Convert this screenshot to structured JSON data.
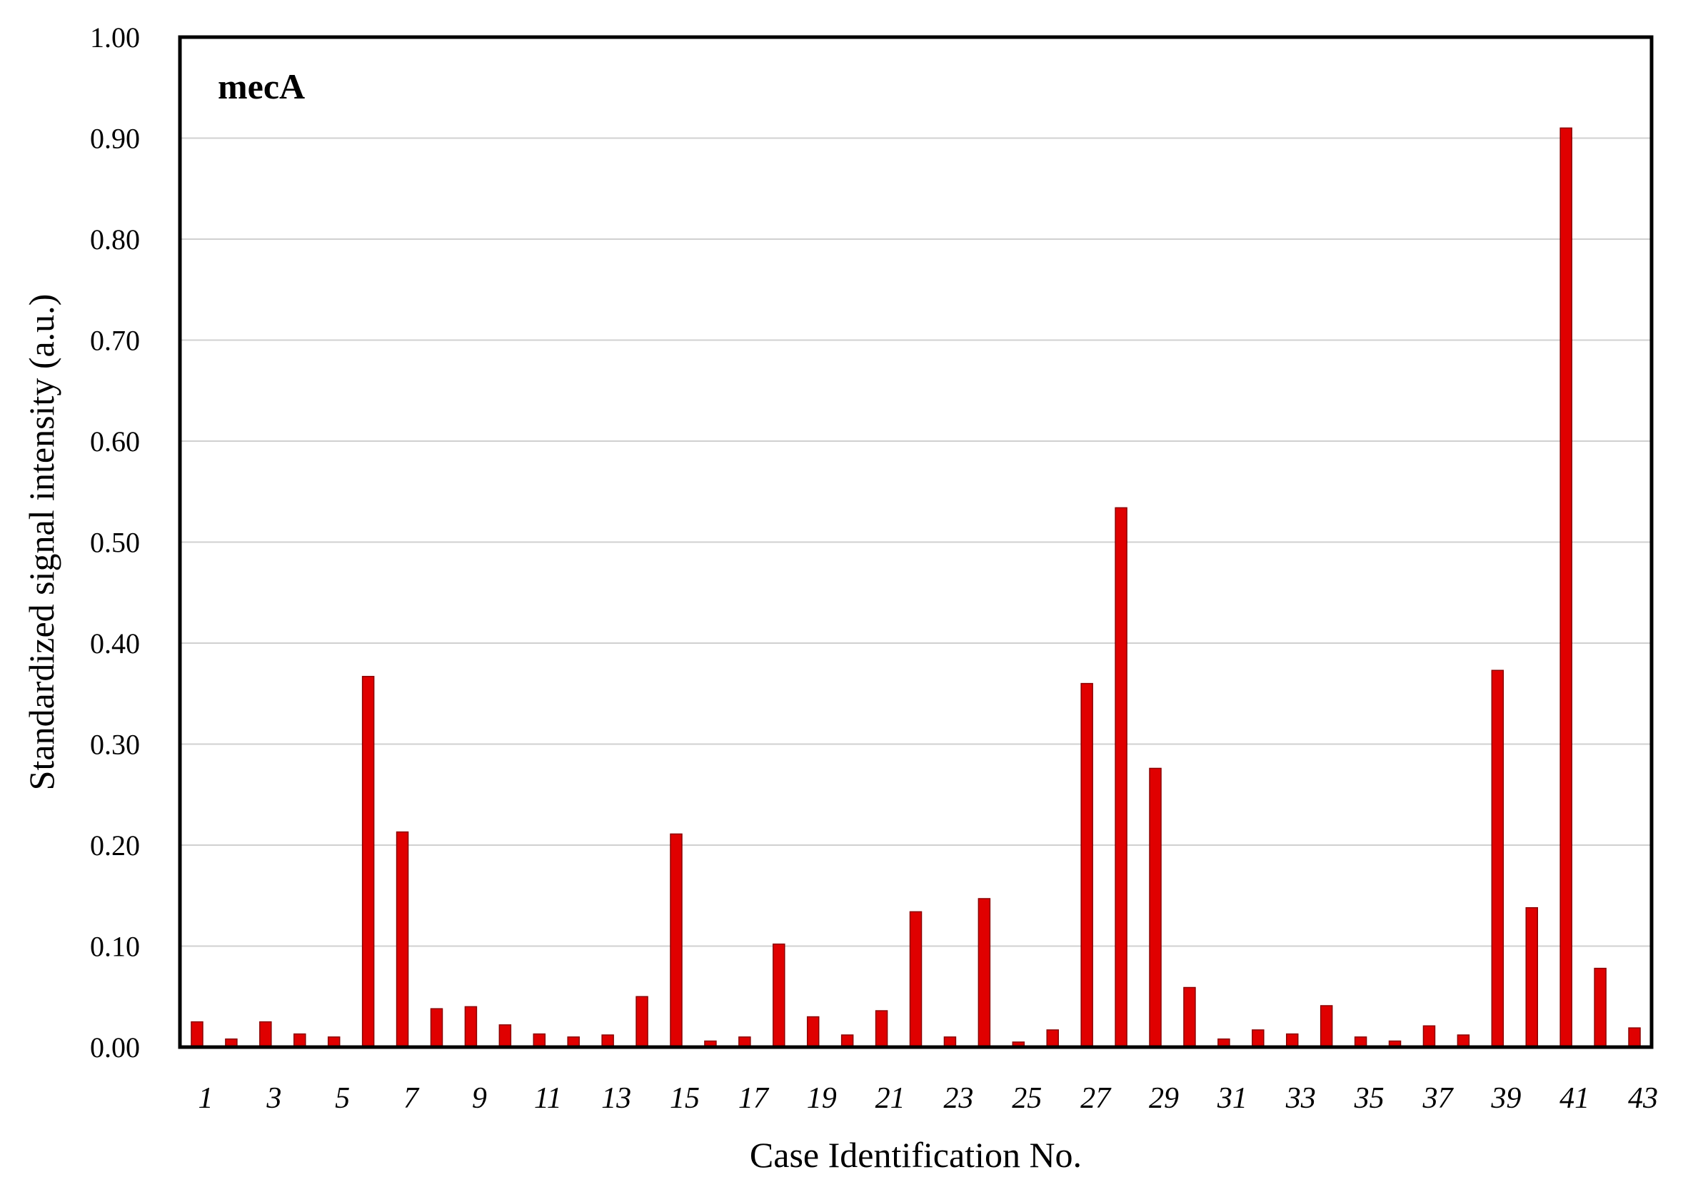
{
  "chart_data": {
    "type": "bar",
    "panel_label": "mecA",
    "xlabel": "Case Identification No.",
    "ylabel": "Standardized signal intensity (a.u.)",
    "ylim": [
      0,
      1.0
    ],
    "yticks": [
      "0.00",
      "0.10",
      "0.20",
      "0.30",
      "0.40",
      "0.50",
      "0.60",
      "0.70",
      "0.80",
      "0.90",
      "1.00"
    ],
    "xtick_labels": [
      "1",
      "3",
      "5",
      "7",
      "9",
      "11",
      "13",
      "15",
      "17",
      "19",
      "21",
      "23",
      "25",
      "27",
      "29",
      "31",
      "33",
      "35",
      "37",
      "39",
      "41",
      "43"
    ],
    "grid": "horizontal",
    "bar_color": "#e00000",
    "categories": [
      1,
      2,
      3,
      4,
      5,
      6,
      7,
      8,
      9,
      10,
      11,
      12,
      13,
      14,
      15,
      16,
      17,
      18,
      19,
      20,
      21,
      22,
      23,
      24,
      25,
      26,
      27,
      28,
      29,
      30,
      31,
      32,
      33,
      34,
      35,
      36,
      37,
      38,
      39,
      40,
      41,
      42,
      43
    ],
    "values": [
      0.025,
      0.008,
      0.025,
      0.013,
      0.01,
      0.367,
      0.213,
      0.038,
      0.04,
      0.022,
      0.013,
      0.01,
      0.012,
      0.05,
      0.211,
      0.006,
      0.01,
      0.102,
      0.03,
      0.012,
      0.036,
      0.134,
      0.01,
      0.147,
      0.005,
      0.017,
      0.36,
      0.534,
      0.276,
      0.059,
      0.008,
      0.017,
      0.013,
      0.041,
      0.01,
      0.006,
      0.021,
      0.012,
      0.373,
      0.138,
      0.91,
      0.078,
      0.019
    ]
  }
}
